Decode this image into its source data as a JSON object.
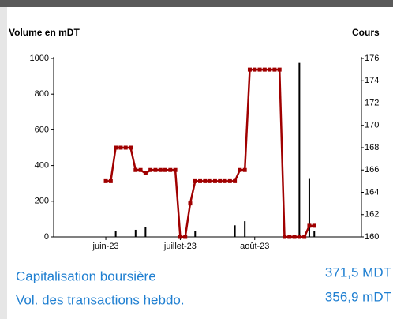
{
  "chart_data": {
    "type": "combo",
    "ylabel": "Volume en mDT",
    "y2label": "Cours",
    "categories": [
      null,
      null,
      null,
      null,
      null,
      null,
      null,
      null,
      null,
      null,
      "juin-23",
      null,
      null,
      null,
      null,
      null,
      null,
      null,
      null,
      null,
      null,
      null,
      null,
      null,
      null,
      "juillet-23",
      null,
      null,
      null,
      null,
      null,
      null,
      null,
      null,
      null,
      null,
      null,
      null,
      null,
      null,
      "août-23",
      null,
      null,
      null,
      null,
      null,
      null,
      null,
      null,
      null,
      null,
      null,
      null,
      null,
      null,
      null,
      null,
      null,
      null,
      null,
      null,
      null
    ],
    "series": [
      {
        "type": "bar",
        "color": "#000000",
        "values": [
          null,
          null,
          null,
          null,
          null,
          null,
          null,
          null,
          null,
          null,
          null,
          null,
          35,
          null,
          null,
          null,
          40,
          null,
          57,
          null,
          null,
          null,
          null,
          null,
          null,
          null,
          null,
          null,
          35,
          null,
          null,
          null,
          null,
          null,
          null,
          null,
          65,
          null,
          88,
          null,
          null,
          null,
          null,
          null,
          null,
          null,
          null,
          null,
          null,
          975,
          null,
          325,
          35,
          null,
          null,
          null,
          null,
          null,
          null,
          null,
          null,
          null
        ]
      },
      {
        "type": "line",
        "axis": "y2",
        "color": "#a00000",
        "values": [
          null,
          null,
          null,
          null,
          null,
          null,
          null,
          null,
          null,
          null,
          165,
          165,
          168,
          168,
          168,
          168,
          166,
          166,
          165.7,
          166,
          166,
          166,
          166,
          166,
          166,
          160,
          160,
          163,
          165,
          165,
          165,
          165,
          165,
          165,
          165,
          165,
          165,
          166,
          166,
          175,
          175,
          175,
          175,
          175,
          175,
          175,
          160,
          160,
          160,
          160,
          160,
          161,
          161,
          null,
          null,
          null,
          null,
          null,
          null,
          null,
          null,
          null
        ]
      }
    ],
    "ylim": [
      0,
      1000
    ],
    "yticks": [
      0,
      200,
      400,
      600,
      800,
      1000
    ],
    "y2lim": [
      160,
      176
    ],
    "y2ticks": [
      160,
      162,
      164,
      166,
      168,
      170,
      172,
      174,
      176
    ]
  },
  "summary": {
    "rows": [
      {
        "label": "Capitalisation boursière",
        "value": "371,5 MDT"
      },
      {
        "label": "Vol. des transactions hebdo.",
        "value": "356,9 mDT"
      }
    ]
  }
}
